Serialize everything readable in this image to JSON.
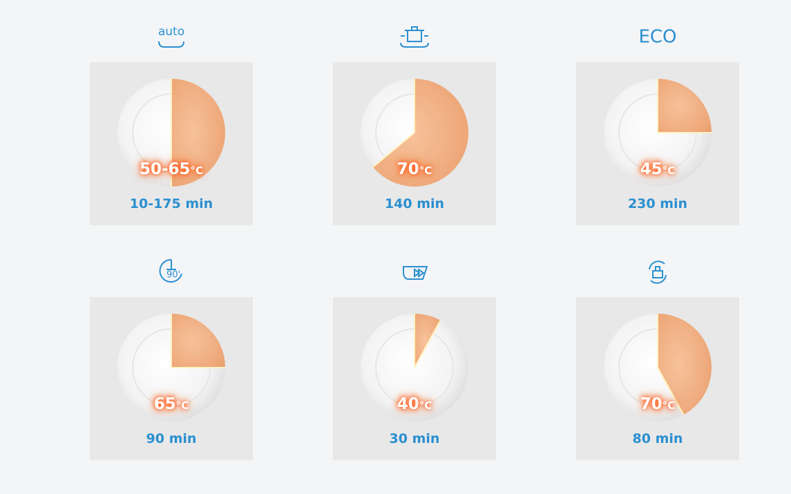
{
  "programs": [
    {
      "icon_text": "auto",
      "temperature": "50-65",
      "unit": "°C",
      "time": "10-175 min",
      "portion": 0.5
    },
    {
      "temperature": "70",
      "unit": "°C",
      "time": "140 min",
      "portion": 0.64
    },
    {
      "icon_text": "ECO",
      "temperature": "45",
      "unit": "°C",
      "time": "230 min",
      "portion": 0.25
    },
    {
      "icon_text": "90'",
      "temperature": "65",
      "unit": "°C",
      "time": "90 min",
      "portion": 0.25
    },
    {
      "temperature": "40",
      "unit": "°C",
      "time": "30 min",
      "portion": 0.08
    },
    {
      "temperature": "70",
      "unit": "°C",
      "time": "80 min",
      "portion": 0.42
    }
  ]
}
